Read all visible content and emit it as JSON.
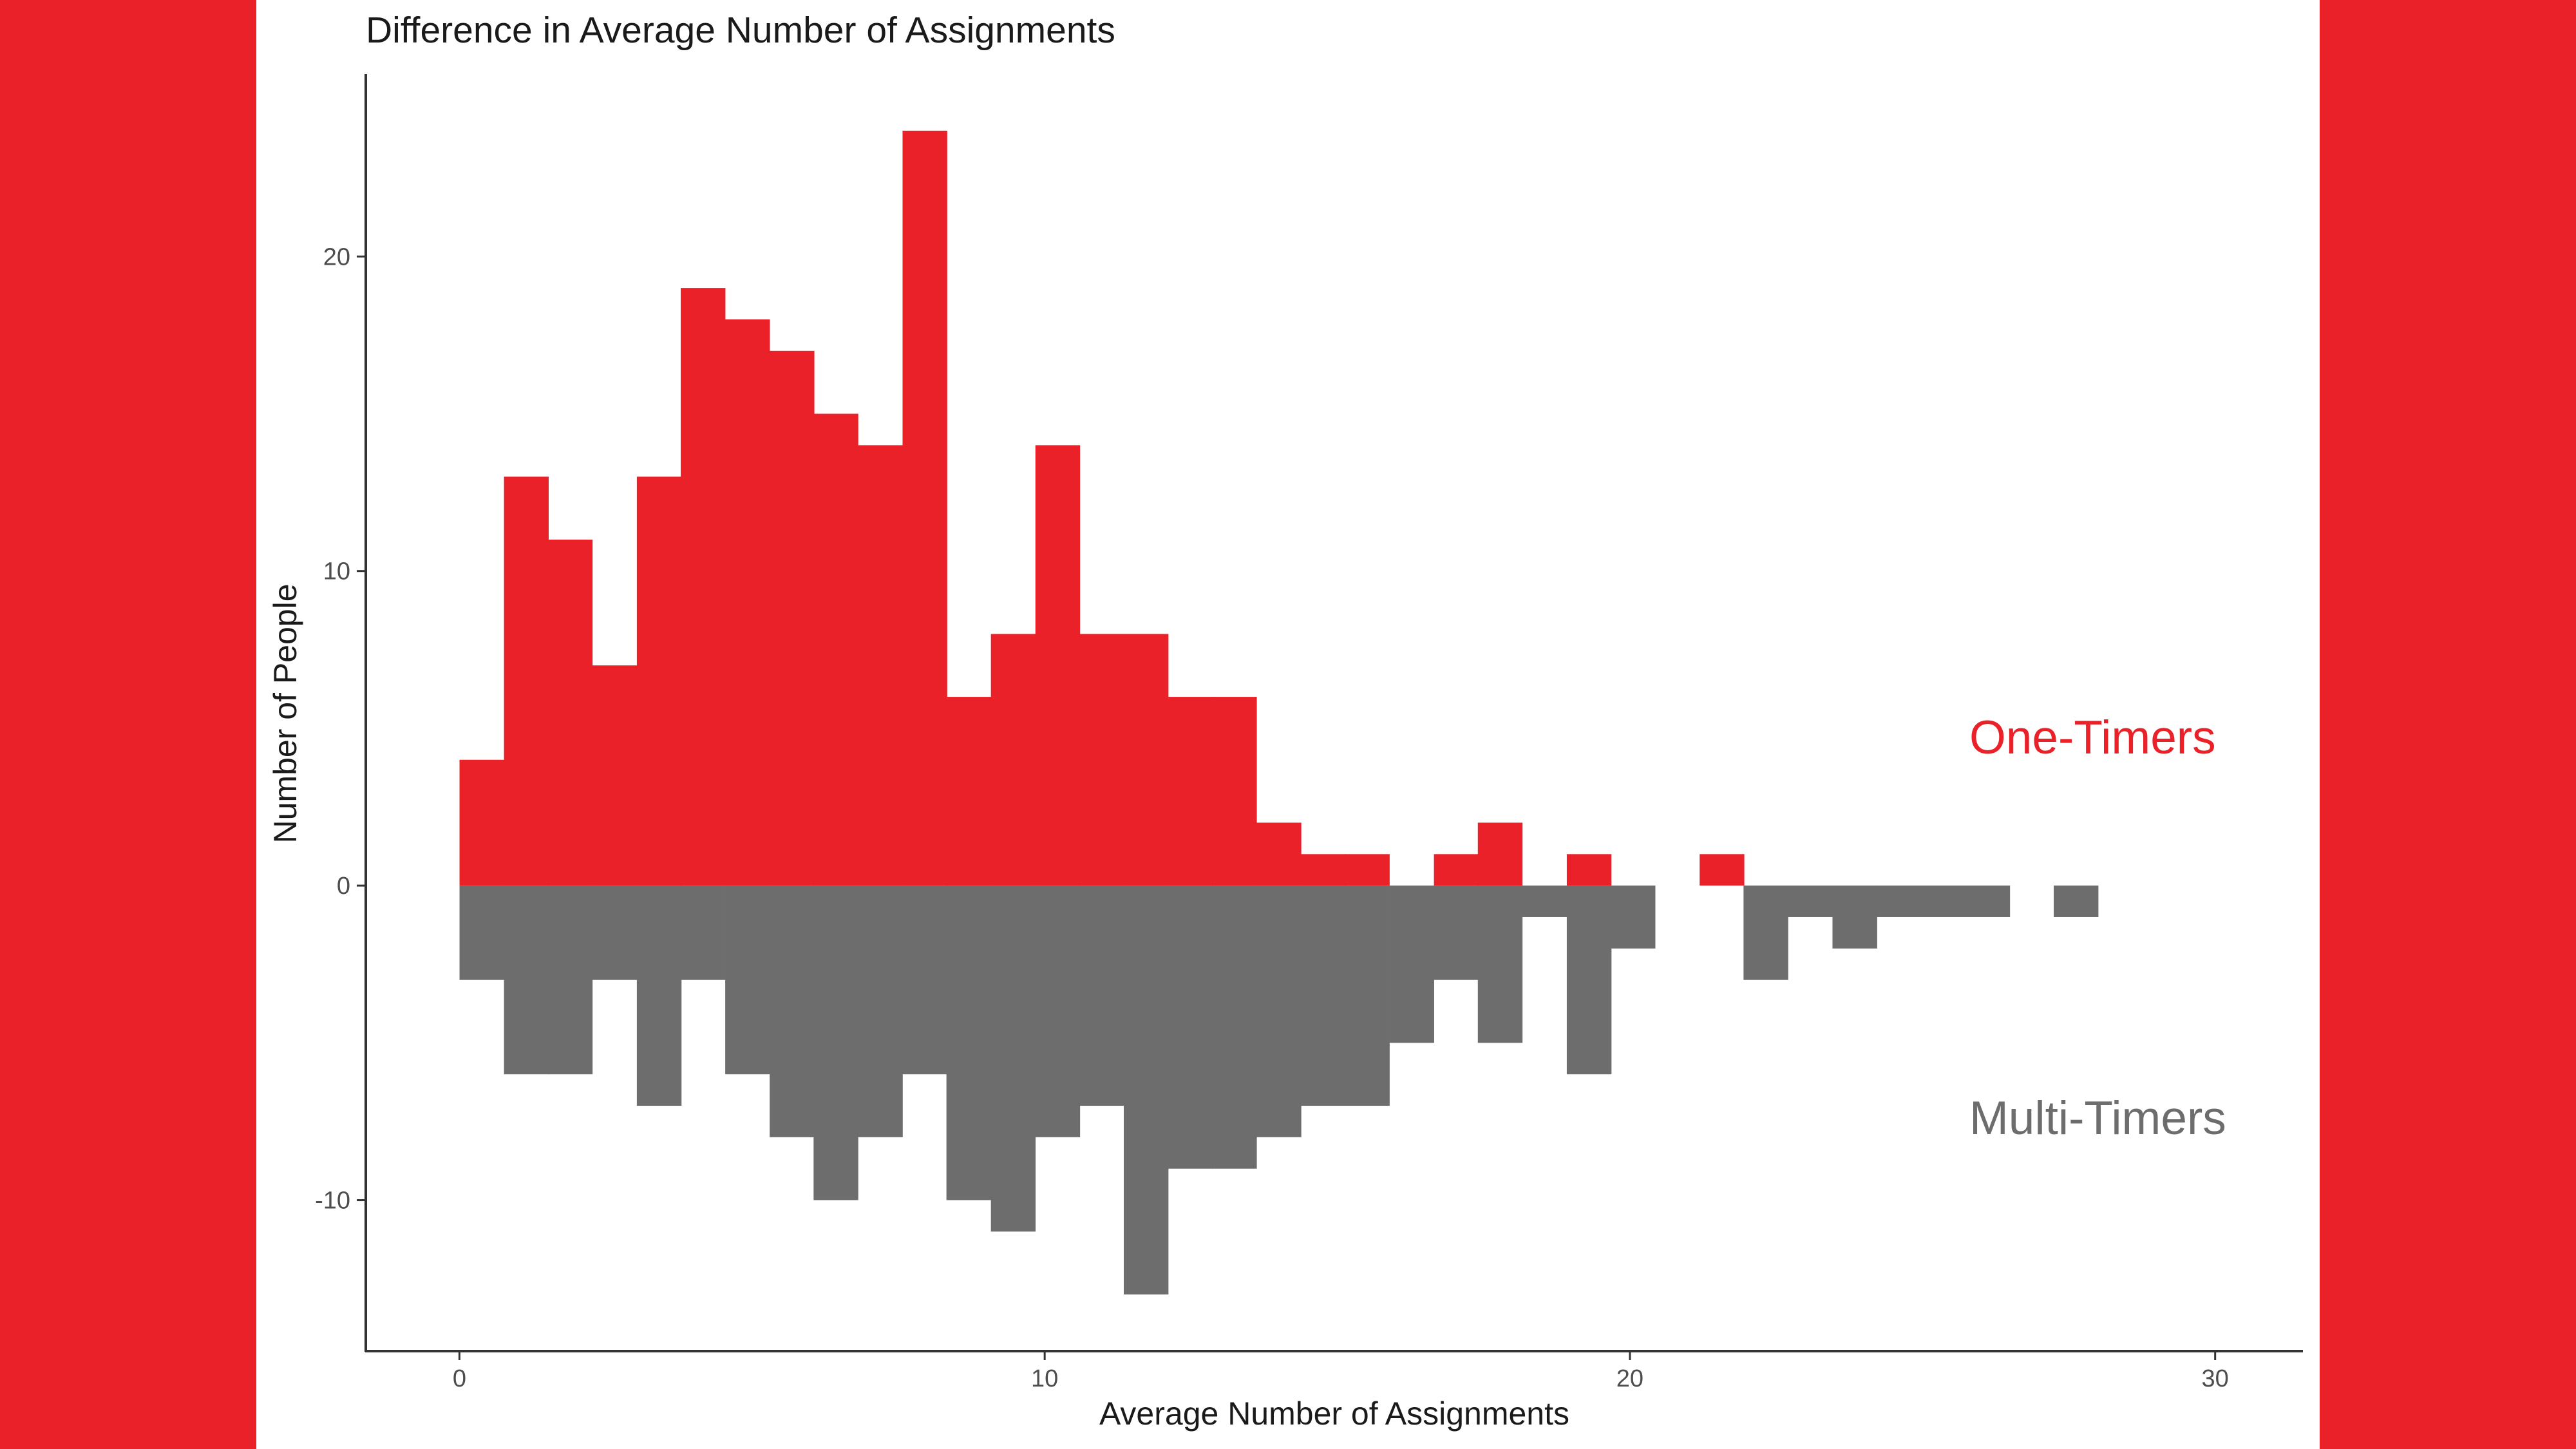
{
  "colors": {
    "side_bar": "#ea2129",
    "one_timers": "#ea2129",
    "multi_timers": "#6d6d6d",
    "axis": "#333333",
    "background": "#ffffff"
  },
  "chart_data": {
    "type": "bar",
    "title": "Difference in Average Number of Assignments",
    "xlabel": "Average Number of Assignments",
    "ylabel": "Number of People",
    "xlim": [
      -1.6,
      31.5
    ],
    "ylim": [
      -14.8,
      25.8
    ],
    "x_ticks": [
      0,
      10,
      20,
      30
    ],
    "y_ticks": [
      -10,
      0,
      10,
      20
    ],
    "grid": false,
    "legend": "inline labels at right",
    "bin_width": 0.757,
    "series": [
      {
        "name": "One-Timers",
        "color": "#ea2129",
        "direction": "up",
        "bins": [
          [
            0.38,
            4
          ],
          [
            1.14,
            13
          ],
          [
            1.89,
            11
          ],
          [
            2.65,
            7
          ],
          [
            3.41,
            13
          ],
          [
            4.16,
            19
          ],
          [
            4.92,
            18
          ],
          [
            5.68,
            17
          ],
          [
            6.43,
            15
          ],
          [
            7.19,
            14
          ],
          [
            7.95,
            24
          ],
          [
            8.7,
            6
          ],
          [
            9.46,
            8
          ],
          [
            10.22,
            14
          ],
          [
            10.97,
            8
          ],
          [
            11.73,
            8
          ],
          [
            12.49,
            6
          ],
          [
            13.24,
            6
          ],
          [
            14.0,
            2
          ],
          [
            14.76,
            1
          ],
          [
            15.51,
            1
          ],
          [
            17.03,
            1
          ],
          [
            17.78,
            2
          ],
          [
            19.3,
            1
          ],
          [
            21.57,
            1
          ]
        ]
      },
      {
        "name": "Multi-Timers",
        "color": "#6d6d6d",
        "direction": "down",
        "bins": [
          [
            0.38,
            3
          ],
          [
            1.14,
            6
          ],
          [
            1.89,
            6
          ],
          [
            2.65,
            3
          ],
          [
            3.41,
            7
          ],
          [
            4.16,
            3
          ],
          [
            4.92,
            6
          ],
          [
            5.68,
            8
          ],
          [
            6.43,
            10
          ],
          [
            7.19,
            8
          ],
          [
            7.95,
            6
          ],
          [
            8.7,
            10
          ],
          [
            9.46,
            11
          ],
          [
            10.22,
            8
          ],
          [
            10.97,
            7
          ],
          [
            11.73,
            13
          ],
          [
            12.49,
            9
          ],
          [
            13.24,
            9
          ],
          [
            14.0,
            8
          ],
          [
            14.76,
            7
          ],
          [
            15.51,
            7
          ],
          [
            16.27,
            5
          ],
          [
            17.03,
            3
          ],
          [
            17.78,
            5
          ],
          [
            18.54,
            1
          ],
          [
            19.3,
            6
          ],
          [
            20.05,
            2
          ],
          [
            22.32,
            3
          ],
          [
            23.08,
            1
          ],
          [
            23.84,
            2
          ],
          [
            24.59,
            1
          ],
          [
            25.35,
            1
          ],
          [
            26.11,
            1
          ],
          [
            27.62,
            1
          ]
        ]
      }
    ],
    "annotations": [
      {
        "text": "One-Timers",
        "x": 25.8,
        "y": 4.2,
        "color": "#ea2129"
      },
      {
        "text": "Multi-Timers",
        "x": 25.8,
        "y": -7.9,
        "color": "#6d6d6d"
      }
    ]
  }
}
